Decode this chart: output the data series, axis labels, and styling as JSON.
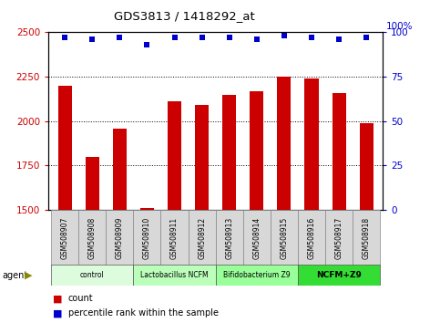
{
  "title": "GDS3813 / 1418292_at",
  "samples": [
    "GSM508907",
    "GSM508908",
    "GSM508909",
    "GSM508910",
    "GSM508911",
    "GSM508912",
    "GSM508913",
    "GSM508914",
    "GSM508915",
    "GSM508916",
    "GSM508917",
    "GSM508918"
  ],
  "counts": [
    2200,
    1800,
    1960,
    1510,
    2110,
    2090,
    2150,
    2170,
    2250,
    2240,
    2160,
    1990
  ],
  "percentile_ranks": [
    97,
    96,
    97,
    93,
    97,
    97,
    97,
    96,
    98,
    97,
    96,
    97
  ],
  "ylim_left": [
    1500,
    2500
  ],
  "ylim_right": [
    0,
    100
  ],
  "yticks_left": [
    1500,
    1750,
    2000,
    2250,
    2500
  ],
  "yticks_right": [
    0,
    25,
    50,
    75,
    100
  ],
  "groups": [
    {
      "label": "control",
      "start": 0,
      "end": 3,
      "color": "#ddfcdd"
    },
    {
      "label": "Lactobacillus NCFM",
      "start": 3,
      "end": 6,
      "color": "#bbffbb"
    },
    {
      "label": "Bifidobacterium Z9",
      "start": 6,
      "end": 9,
      "color": "#99ff99"
    },
    {
      "label": "NCFM+Z9",
      "start": 9,
      "end": 12,
      "color": "#33dd33"
    }
  ],
  "bar_color": "#cc0000",
  "dot_color": "#0000cc",
  "bar_width": 0.5,
  "tick_label_color_left": "#cc0000",
  "tick_label_color_right": "#0000cc",
  "sample_box_color": "#d8d8d8",
  "fig_width": 4.83,
  "fig_height": 3.54,
  "fig_dpi": 100
}
